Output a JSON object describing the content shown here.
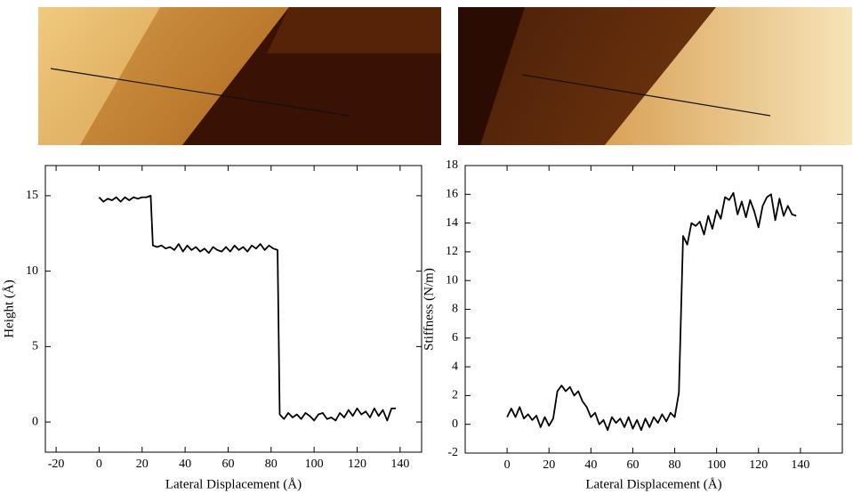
{
  "chart_data": [
    {
      "type": "line",
      "xlabel": "Lateral Displacement (Å)",
      "ylabel": "Height (Å)",
      "color": "#000000",
      "x": [
        0,
        2,
        4,
        6,
        8,
        10,
        12,
        14,
        16,
        18,
        20,
        22,
        24,
        25,
        27,
        29,
        31,
        33,
        35,
        37,
        39,
        41,
        43,
        45,
        47,
        49,
        51,
        53,
        55,
        57,
        59,
        61,
        63,
        65,
        67,
        69,
        71,
        73,
        75,
        77,
        79,
        81,
        83,
        84,
        86,
        88,
        90,
        92,
        94,
        96,
        98,
        100,
        102,
        104,
        106,
        108,
        110,
        112,
        114,
        116,
        118,
        120,
        122,
        124,
        126,
        128,
        130,
        132,
        134,
        136,
        138
      ],
      "values": [
        14.9,
        14.6,
        14.8,
        14.7,
        14.9,
        14.6,
        14.9,
        14.7,
        14.9,
        14.8,
        14.9,
        14.9,
        15.0,
        11.7,
        11.6,
        11.7,
        11.5,
        11.6,
        11.4,
        11.8,
        11.3,
        11.7,
        11.4,
        11.6,
        11.3,
        11.5,
        11.2,
        11.6,
        11.4,
        11.3,
        11.6,
        11.3,
        11.7,
        11.4,
        11.6,
        11.3,
        11.7,
        11.5,
        11.8,
        11.4,
        11.7,
        11.5,
        11.4,
        0.5,
        0.2,
        0.6,
        0.3,
        0.5,
        0.2,
        0.6,
        0.4,
        0.1,
        0.5,
        0.6,
        0.2,
        0.3,
        0.1,
        0.6,
        0.3,
        0.8,
        0.4,
        0.9,
        0.5,
        0.7,
        0.3,
        0.9,
        0.4,
        0.8,
        0.1,
        0.9,
        0.9
      ],
      "xlim": [
        -25,
        150
      ],
      "xticks": [
        -20,
        0,
        20,
        40,
        60,
        80,
        100,
        120,
        140
      ],
      "ylim": [
        -2,
        17
      ],
      "yticks": [
        0,
        5,
        10,
        15
      ]
    },
    {
      "type": "line",
      "xlabel": "Lateral Displacement (Å)",
      "ylabel": "Stiffness (N/m)",
      "color": "#000000",
      "x": [
        0,
        2,
        4,
        6,
        8,
        10,
        12,
        14,
        16,
        18,
        20,
        22,
        24,
        26,
        28,
        30,
        32,
        34,
        36,
        38,
        40,
        42,
        44,
        46,
        48,
        50,
        52,
        54,
        56,
        58,
        60,
        62,
        64,
        66,
        68,
        70,
        72,
        74,
        76,
        78,
        80,
        82,
        84,
        86,
        88,
        90,
        92,
        94,
        96,
        98,
        100,
        102,
        104,
        106,
        108,
        110,
        112,
        114,
        116,
        118,
        120,
        122,
        124,
        126,
        128,
        130,
        132,
        134,
        136,
        138
      ],
      "values": [
        0.5,
        1.1,
        0.5,
        1.2,
        0.4,
        0.7,
        0.3,
        0.6,
        -0.2,
        0.5,
        -0.1,
        0.4,
        2.3,
        2.7,
        2.3,
        2.6,
        2.0,
        2.3,
        1.6,
        1.2,
        0.5,
        0.8,
        0.0,
        0.3,
        -0.4,
        0.5,
        0.1,
        0.4,
        -0.2,
        0.5,
        -0.3,
        0.3,
        -0.4,
        0.4,
        -0.2,
        0.5,
        0.1,
        0.7,
        0.2,
        0.8,
        0.5,
        2.2,
        13.1,
        12.5,
        14.0,
        13.8,
        14.1,
        13.2,
        14.5,
        13.6,
        14.9,
        14.3,
        15.8,
        15.6,
        16.1,
        14.6,
        15.5,
        14.4,
        15.6,
        14.8,
        13.7,
        15.2,
        15.8,
        16.0,
        14.2,
        15.7,
        14.5,
        15.2,
        14.6,
        14.5
      ],
      "xlim": [
        -20,
        160
      ],
      "xticks": [
        0,
        20,
        40,
        60,
        80,
        100,
        120,
        140
      ],
      "ylim": [
        -2,
        18
      ],
      "yticks": [
        -2,
        0,
        2,
        4,
        6,
        8,
        10,
        12,
        14,
        16,
        18
      ]
    }
  ]
}
